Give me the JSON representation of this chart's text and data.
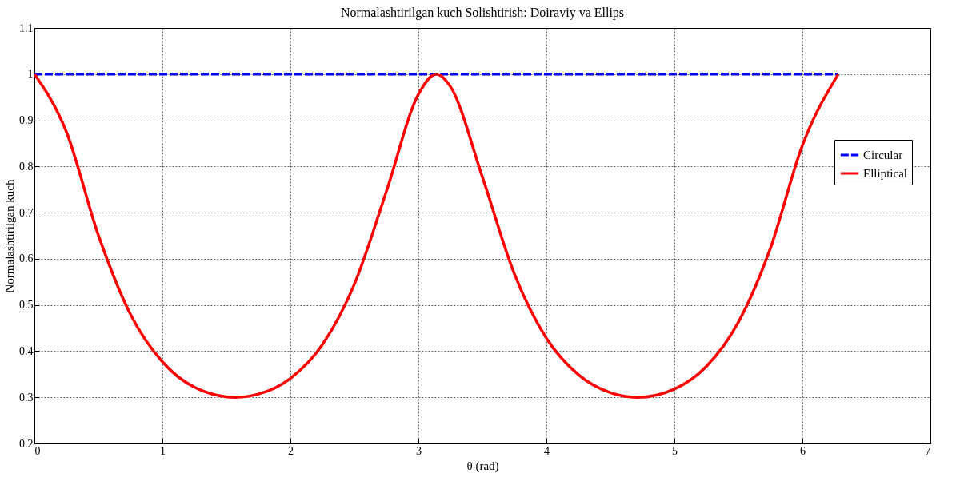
{
  "chart_data": {
    "type": "line",
    "title": "Normalashtirilgan kuch Solishtirish: Doiraviy va Ellips",
    "xlabel": "θ (rad)",
    "ylabel": "Normalashtirilgan kuch",
    "xlim": [
      0,
      7
    ],
    "xticks": [
      0,
      1,
      2,
      3,
      4,
      5,
      6,
      7
    ],
    "ylim": [
      0.2,
      1.1
    ],
    "yticks": [
      0.2,
      0.3,
      0.4,
      0.5,
      0.6,
      0.7,
      0.8,
      0.9,
      1,
      1.1
    ],
    "grid": true,
    "legend": "top right",
    "series": [
      {
        "name": "Circular",
        "color": "#0000ff",
        "line_style": "dashed",
        "x": [
          0,
          6.28
        ],
        "values": [
          1,
          1
        ]
      },
      {
        "name": "Elliptical",
        "color": "#ff0000",
        "line_style": "solid",
        "x": [
          0,
          0.25,
          0.5,
          0.75,
          1,
          1.25,
          1.57,
          1.75,
          2,
          2.25,
          2.5,
          2.75,
          3,
          3.14,
          3.25,
          3.5,
          3.75,
          4,
          4.25,
          4.5,
          4.71,
          5,
          5.25,
          5.5,
          5.75,
          6,
          6.28
        ],
        "values": [
          1,
          0.875,
          0.651,
          0.48,
          0.377,
          0.322,
          0.3,
          0.307,
          0.341,
          0.414,
          0.545,
          0.746,
          0.956,
          1,
          0.973,
          0.777,
          0.567,
          0.428,
          0.349,
          0.31,
          0.3,
          0.318,
          0.367,
          0.463,
          0.623,
          0.846,
          1
        ]
      }
    ]
  }
}
